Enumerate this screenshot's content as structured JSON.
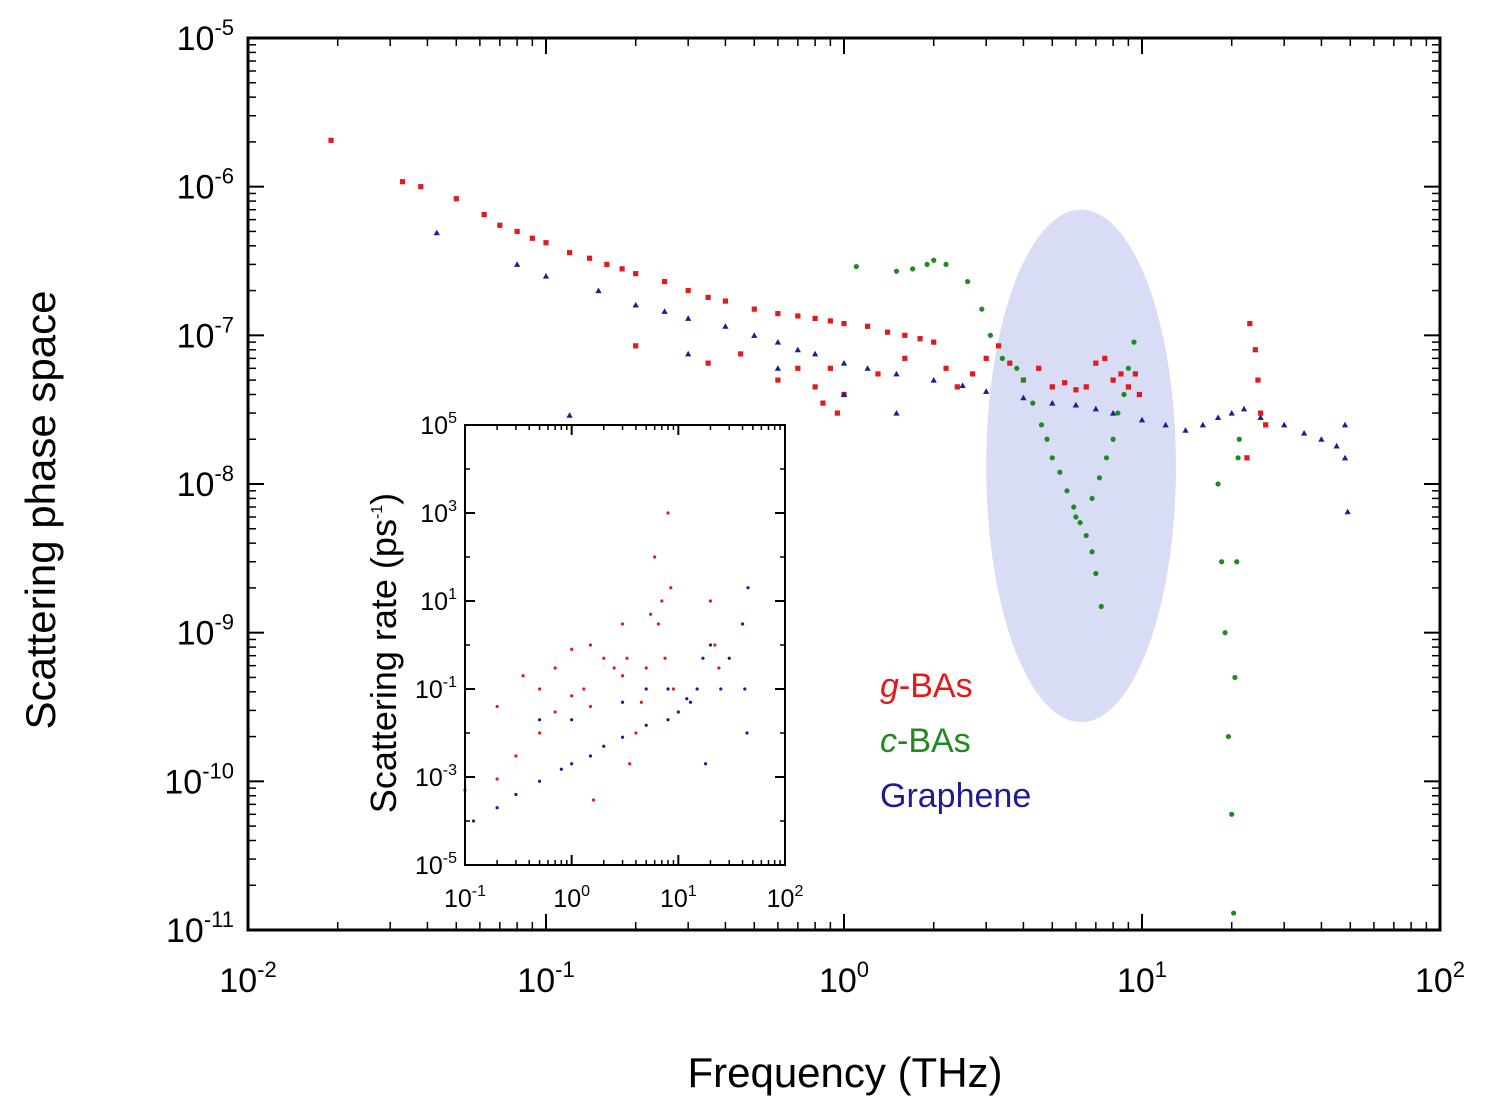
{
  "chart_data": [
    {
      "type": "scatter",
      "id": "main",
      "xlabel": "Frequency (THz)",
      "ylabel": "Scattering phase space",
      "xscale": "log",
      "yscale": "log",
      "xlim": [
        0.01,
        100
      ],
      "ylim": [
        1e-11,
        1e-05
      ],
      "xticks": [
        {
          "base": "10",
          "exp": "-2"
        },
        {
          "base": "10",
          "exp": "-1"
        },
        {
          "base": "10",
          "exp": "0"
        },
        {
          "base": "10",
          "exp": "1"
        },
        {
          "base": "10",
          "exp": "2"
        }
      ],
      "yticks": [
        {
          "base": "10",
          "exp": "-11"
        },
        {
          "base": "10",
          "exp": "-10"
        },
        {
          "base": "10",
          "exp": "-9"
        },
        {
          "base": "10",
          "exp": "-8"
        },
        {
          "base": "10",
          "exp": "-7"
        },
        {
          "base": "10",
          "exp": "-6"
        },
        {
          "base": "10",
          "exp": "-5"
        }
      ],
      "highlight_region": {
        "shape": "ellipse",
        "x_center": 6.3,
        "x_range": [
          3.0,
          13.0
        ],
        "y_range": [
          2.5e-10,
          7e-07
        ],
        "color": "#d8dcf5"
      },
      "legend": {
        "position": "lower-right",
        "entries": [
          {
            "italic": "g",
            "text": "-BAs",
            "color": "#e31a1c"
          },
          {
            "italic": "c",
            "text": "-BAs",
            "color": "#1f8a1f"
          },
          {
            "italic": "",
            "text": "Graphene",
            "color": "#1c1c96"
          }
        ]
      },
      "series": [
        {
          "name": "g-BAs",
          "color": "#e31a1c",
          "marker": "square",
          "points": [
            [
              0.019,
              2.05e-06
            ],
            [
              0.033,
              1.08e-06
            ],
            [
              0.038,
              1e-06
            ],
            [
              0.05,
              8.3e-07
            ],
            [
              0.062,
              6.5e-07
            ],
            [
              0.07,
              5.5e-07
            ],
            [
              0.08,
              5e-07
            ],
            [
              0.09,
              4.5e-07
            ],
            [
              0.1,
              4.2e-07
            ],
            [
              0.12,
              3.6e-07
            ],
            [
              0.14,
              3.3e-07
            ],
            [
              0.16,
              3e-07
            ],
            [
              0.18,
              2.8e-07
            ],
            [
              0.2,
              2.6e-07
            ],
            [
              0.25,
              2.3e-07
            ],
            [
              0.3,
              2e-07
            ],
            [
              0.35,
              1.8e-07
            ],
            [
              0.4,
              1.7e-07
            ],
            [
              0.5,
              1.5e-07
            ],
            [
              0.6,
              1.4e-07
            ],
            [
              0.7,
              1.35e-07
            ],
            [
              0.8,
              1.3e-07
            ],
            [
              0.9,
              1.25e-07
            ],
            [
              1.0,
              1.2e-07
            ],
            [
              1.2,
              1.15e-07
            ],
            [
              1.4,
              1.05e-07
            ],
            [
              1.6,
              1e-07
            ],
            [
              1.8,
              9.5e-08
            ],
            [
              2.0,
              9e-08
            ],
            [
              0.2,
              8.5e-08
            ],
            [
              0.35,
              6.5e-08
            ],
            [
              0.45,
              7.5e-08
            ],
            [
              0.6,
              5e-08
            ],
            [
              0.7,
              6e-08
            ],
            [
              0.8,
              4.5e-08
            ],
            [
              0.9,
              6e-08
            ],
            [
              1.0,
              4e-08
            ],
            [
              0.85,
              3.5e-08
            ],
            [
              0.95,
              3e-08
            ],
            [
              1.3,
              5.5e-08
            ],
            [
              1.6,
              7e-08
            ],
            [
              2.2,
              6e-08
            ],
            [
              2.4,
              4.5e-08
            ],
            [
              2.7,
              5.5e-08
            ],
            [
              3.0,
              7e-08
            ],
            [
              3.3,
              8.5e-08
            ],
            [
              3.6,
              6.5e-08
            ],
            [
              4.0,
              5e-08
            ],
            [
              4.5,
              6e-08
            ],
            [
              5.0,
              4.5e-08
            ],
            [
              5.5,
              4.8e-08
            ],
            [
              6.0,
              4.3e-08
            ],
            [
              6.5,
              4.5e-08
            ],
            [
              7.0,
              6.5e-08
            ],
            [
              7.5,
              7e-08
            ],
            [
              8.0,
              5e-08
            ],
            [
              8.5,
              5.5e-08
            ],
            [
              9.0,
              4.5e-08
            ],
            [
              9.5,
              5.5e-08
            ],
            [
              9.8,
              4e-08
            ],
            [
              23.0,
              1.2e-07
            ],
            [
              24.0,
              8e-08
            ],
            [
              24.5,
              5e-08
            ],
            [
              25.0,
              3e-08
            ],
            [
              22.5,
              1.5e-08
            ],
            [
              26.0,
              2.5e-08
            ]
          ]
        },
        {
          "name": "c-BAs",
          "color": "#1f8a1f",
          "marker": "circle",
          "points": [
            [
              1.1,
              2.9e-07
            ],
            [
              1.5,
              2.7e-07
            ],
            [
              1.7,
              2.8e-07
            ],
            [
              1.9,
              3e-07
            ],
            [
              2.0,
              3.2e-07
            ],
            [
              2.2,
              3e-07
            ],
            [
              2.6,
              2.3e-07
            ],
            [
              2.9,
              1.5e-07
            ],
            [
              3.1,
              1e-07
            ],
            [
              3.4,
              7e-08
            ],
            [
              3.8,
              6e-08
            ],
            [
              4.0,
              5e-08
            ],
            [
              4.3,
              3.5e-08
            ],
            [
              4.6,
              2.5e-08
            ],
            [
              4.8,
              2e-08
            ],
            [
              5.0,
              1.5e-08
            ],
            [
              5.3,
              1.2e-08
            ],
            [
              5.6,
              9e-09
            ],
            [
              5.9,
              7e-09
            ],
            [
              6.2,
              5.5e-09
            ],
            [
              6.5,
              4.5e-09
            ],
            [
              6.8,
              3.5e-09
            ],
            [
              7.0,
              2.5e-09
            ],
            [
              7.3,
              1.5e-09
            ],
            [
              6.0,
              6e-09
            ],
            [
              6.8,
              8e-09
            ],
            [
              7.2,
              1.1e-08
            ],
            [
              7.6,
              1.5e-08
            ],
            [
              8.0,
              2e-08
            ],
            [
              8.3,
              3e-08
            ],
            [
              8.7,
              4e-08
            ],
            [
              9.0,
              6e-08
            ],
            [
              9.4,
              9e-08
            ],
            [
              18.0,
              1e-08
            ],
            [
              18.5,
              3e-09
            ],
            [
              19.0,
              1e-09
            ],
            [
              19.5,
              2e-10
            ],
            [
              20.0,
              6e-11
            ],
            [
              20.3,
              1.3e-11
            ],
            [
              20.5,
              5e-10
            ],
            [
              20.8,
              3e-09
            ],
            [
              21.0,
              1.5e-08
            ],
            [
              21.2,
              2e-08
            ]
          ]
        },
        {
          "name": "Graphene",
          "color": "#1c1c96",
          "marker": "triangle",
          "points": [
            [
              0.043,
              4.9e-07
            ],
            [
              0.08,
              3e-07
            ],
            [
              0.1,
              2.5e-07
            ],
            [
              0.15,
              2e-07
            ],
            [
              0.2,
              1.6e-07
            ],
            [
              0.25,
              1.45e-07
            ],
            [
              0.3,
              1.3e-07
            ],
            [
              0.4,
              1.15e-07
            ],
            [
              0.5,
              1e-07
            ],
            [
              0.6,
              9e-08
            ],
            [
              0.7,
              8e-08
            ],
            [
              0.8,
              7.5e-08
            ],
            [
              1.0,
              6.5e-08
            ],
            [
              1.2,
              6e-08
            ],
            [
              1.5,
              5.5e-08
            ],
            [
              2.0,
              5e-08
            ],
            [
              2.5,
              4.6e-08
            ],
            [
              3.0,
              4.2e-08
            ],
            [
              4.0,
              3.8e-08
            ],
            [
              5.0,
              3.5e-08
            ],
            [
              6.0,
              3.4e-08
            ],
            [
              7.0,
              3.2e-08
            ],
            [
              8.0,
              3e-08
            ],
            [
              10.0,
              2.7e-08
            ],
            [
              12.0,
              2.5e-08
            ],
            [
              14.0,
              2.3e-08
            ],
            [
              16.0,
              2.5e-08
            ],
            [
              18.0,
              2.8e-08
            ],
            [
              20.0,
              3e-08
            ],
            [
              22.0,
              3.2e-08
            ],
            [
              25.0,
              2.8e-08
            ],
            [
              30.0,
              2.5e-08
            ],
            [
              35.0,
              2.2e-08
            ],
            [
              40.0,
              2e-08
            ],
            [
              45.0,
              1.8e-08
            ],
            [
              48.0,
              1.5e-08
            ],
            [
              48.0,
              2.5e-08
            ],
            [
              49.0,
              6.5e-09
            ],
            [
              0.3,
              7.5e-08
            ],
            [
              0.6,
              6e-08
            ],
            [
              1.0,
              4e-08
            ],
            [
              1.5,
              3e-08
            ],
            [
              0.12,
              2.9e-08
            ]
          ]
        }
      ]
    },
    {
      "type": "scatter",
      "id": "inset",
      "xlabel": "",
      "ylabel": "Scattering rate (ps",
      "ylabel_sup": "-1",
      "ylabel_end": ")",
      "xscale": "log",
      "yscale": "log",
      "xlim": [
        0.1,
        100
      ],
      "ylim": [
        1e-05,
        100000.0
      ],
      "xticks": [
        {
          "base": "10",
          "exp": "-1"
        },
        {
          "base": "10",
          "exp": "0"
        },
        {
          "base": "10",
          "exp": "1"
        },
        {
          "base": "10",
          "exp": "2"
        }
      ],
      "yticks": [
        {
          "base": "10",
          "exp": "-5"
        },
        {
          "base": "10",
          "exp": "-3"
        },
        {
          "base": "10",
          "exp": "-1"
        },
        {
          "base": "10",
          "exp": "1"
        },
        {
          "base": "10",
          "exp": "3"
        },
        {
          "base": "10",
          "exp": "5"
        }
      ],
      "series": [
        {
          "name": "g-BAs",
          "color": "#e31a1c",
          "marker": "circle",
          "points": [
            [
              0.1,
              0.0005
            ],
            [
              0.2,
              0.0009
            ],
            [
              0.3,
              0.003
            ],
            [
              0.5,
              0.01
            ],
            [
              0.7,
              0.03
            ],
            [
              1.0,
              0.07
            ],
            [
              1.3,
              0.1
            ],
            [
              1.5,
              0.04
            ],
            [
              1.6,
              0.0003
            ],
            [
              0.5,
              0.1
            ],
            [
              0.7,
              0.3
            ],
            [
              1.0,
              0.8
            ],
            [
              1.5,
              1.0
            ],
            [
              2.0,
              0.5
            ],
            [
              2.5,
              0.3
            ],
            [
              3.0,
              0.2
            ],
            [
              3.3,
              0.5
            ],
            [
              3.5,
              0.002
            ],
            [
              4.0,
              0.01
            ],
            [
              4.5,
              0.05
            ],
            [
              5.0,
              0.3
            ],
            [
              5.5,
              5.0
            ],
            [
              6.0,
              100.0
            ],
            [
              6.5,
              3.0
            ],
            [
              7.0,
              10.0
            ],
            [
              7.5,
              0.5
            ],
            [
              8.0,
              1000.0
            ],
            [
              8.5,
              20.0
            ],
            [
              9.0,
              0.1
            ],
            [
              20.0,
              10.0
            ],
            [
              22.0,
              1.0
            ],
            [
              24.0,
              0.3
            ],
            [
              3.0,
              3.0
            ],
            [
              0.2,
              0.04
            ],
            [
              0.35,
              0.2
            ]
          ]
        },
        {
          "name": "Graphene",
          "color": "#1c1c96",
          "marker": "circle",
          "points": [
            [
              0.12,
              0.0001
            ],
            [
              0.2,
              0.0002
            ],
            [
              0.3,
              0.0004
            ],
            [
              0.5,
              0.0008
            ],
            [
              0.8,
              0.0015
            ],
            [
              1.0,
              0.002
            ],
            [
              1.5,
              0.003
            ],
            [
              2.0,
              0.005
            ],
            [
              3.0,
              0.008
            ],
            [
              5.0,
              0.015
            ],
            [
              8.0,
              0.02
            ],
            [
              10.0,
              0.03
            ],
            [
              13.0,
              0.05
            ],
            [
              15.0,
              0.1
            ],
            [
              17.0,
              0.5
            ],
            [
              18.0,
              0.002
            ],
            [
              20.0,
              1.0
            ],
            [
              25.0,
              0.1
            ],
            [
              30.0,
              0.5
            ],
            [
              40.0,
              3.0
            ],
            [
              42.0,
              0.1
            ],
            [
              44.0,
              0.01
            ],
            [
              45.0,
              20.0
            ],
            [
              0.5,
              0.02
            ],
            [
              1.0,
              0.02
            ],
            [
              3.0,
              0.05
            ],
            [
              5.0,
              0.1
            ],
            [
              8.0,
              0.1
            ],
            [
              12.0,
              0.06
            ]
          ]
        }
      ]
    }
  ]
}
